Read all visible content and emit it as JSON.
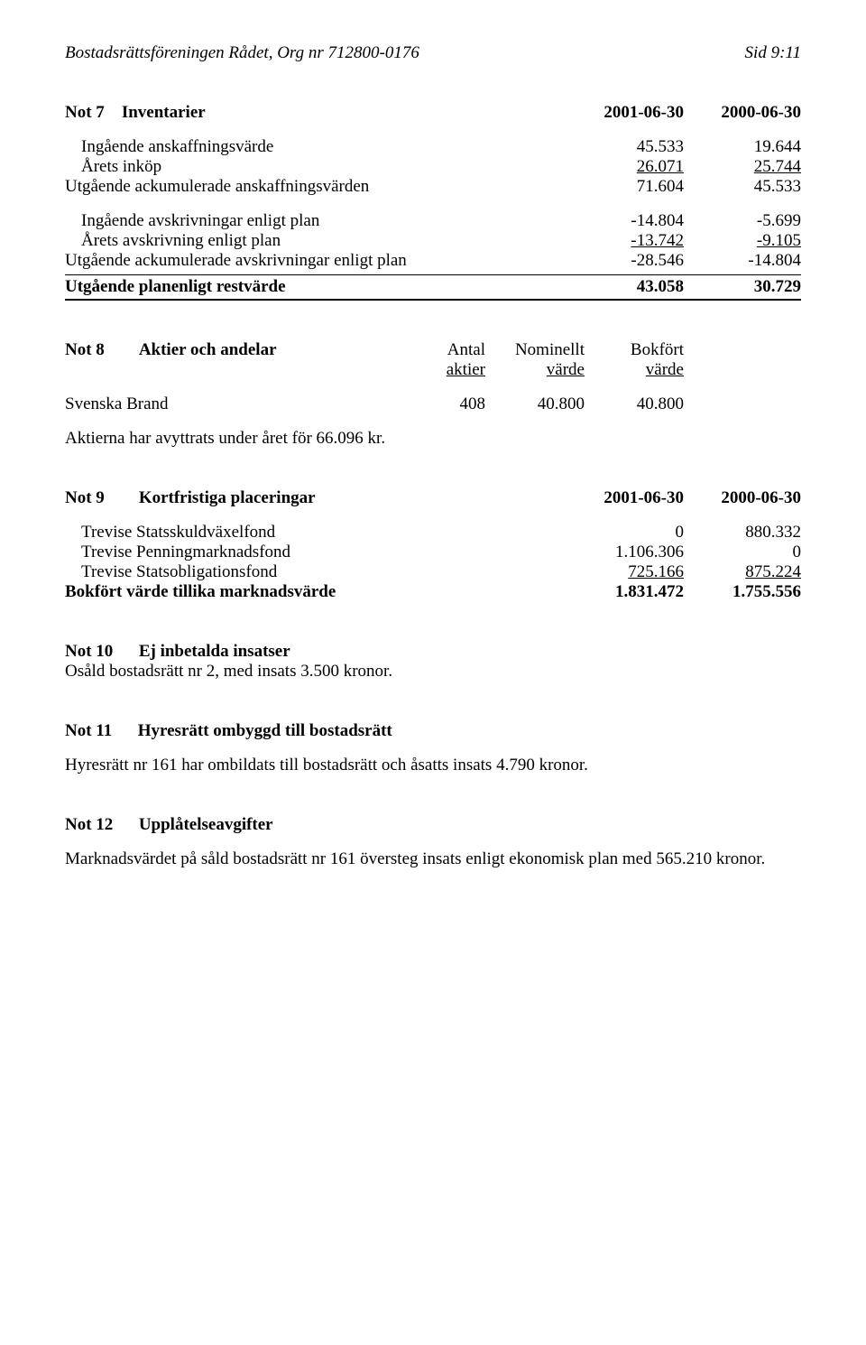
{
  "header": {
    "left": "Bostadsrättsföreningen Rådet, Org nr 712800-0176",
    "right": "Sid 9:11"
  },
  "note7": {
    "title_prefix": "Not 7",
    "title": "Inventarier",
    "col1": "2001-06-30",
    "col2": "2000-06-30",
    "rows": [
      {
        "label": "Ingående anskaffningsvärde",
        "v1": "45.533",
        "v2": "19.644",
        "indent": true
      },
      {
        "label": "Årets inköp",
        "v1": "26.071",
        "v2": "25.744",
        "indent": true,
        "underline": true
      }
    ],
    "subtotal1": {
      "label": "Utgående ackumulerade anskaffningsvärden",
      "v1": "71.604",
      "v2": "45.533"
    },
    "rows2": [
      {
        "label": "Ingående avskrivningar enligt plan",
        "v1": "-14.804",
        "v2": "-5.699",
        "indent": true
      },
      {
        "label": "Årets avskrivning enligt plan",
        "v1": "-13.742",
        "v2": "-9.105",
        "indent": true,
        "underline": true
      }
    ],
    "subtotal2": {
      "label": "Utgående ackumulerade avskrivningar enligt plan",
      "v1": "-28.546",
      "v2": "-14.804"
    },
    "total": {
      "label": "Utgående planenligt restvärde",
      "v1": "43.058",
      "v2": "30.729"
    }
  },
  "note8": {
    "title_prefix": "Not 8",
    "title": "Aktier och andelar",
    "headers": {
      "c1": "Antal",
      "c2": "Nominellt",
      "c3": "Bokfört",
      "c1b": "aktier",
      "c2b": "värde",
      "c3b": "värde"
    },
    "row": {
      "label": "Svenska Brand",
      "v1": "408",
      "v2": "40.800",
      "v3": "40.800"
    },
    "footnote": "Aktierna har avyttrats under året för 66.096 kr."
  },
  "note9": {
    "title_prefix": "Not 9",
    "title": "Kortfristiga placeringar",
    "col1": "2001-06-30",
    "col2": "2000-06-30",
    "rows": [
      {
        "label": "Trevise Statsskuldväxelfond",
        "v1": "0",
        "v2": "880.332"
      },
      {
        "label": "Trevise Penningmarknadsfond",
        "v1": "1.106.306",
        "v2": "0"
      },
      {
        "label": "Trevise Statsobligationsfond",
        "v1": "725.166",
        "v2": "875.224",
        "underline": true
      }
    ],
    "total": {
      "label": "Bokfört värde tillika marknadsvärde",
      "v1": "1.831.472",
      "v2": "1.755.556"
    }
  },
  "note10": {
    "title_prefix": "Not 10",
    "title": "Ej inbetalda insatser",
    "body": "Osåld bostadsrätt nr 2, med insats 3.500 kronor."
  },
  "note11": {
    "title_prefix": "Not 11",
    "title": "Hyresrätt ombyggd till bostadsrätt",
    "body": "Hyresrätt nr 161 har ombildats till bostadsrätt och åsatts insats 4.790 kronor."
  },
  "note12": {
    "title_prefix": "Not 12",
    "title": "Upplåtelseavgifter",
    "body": "Marknadsvärdet på såld bostadsrätt nr 161 översteg insats enligt ekonomisk plan med 565.210 kronor."
  }
}
